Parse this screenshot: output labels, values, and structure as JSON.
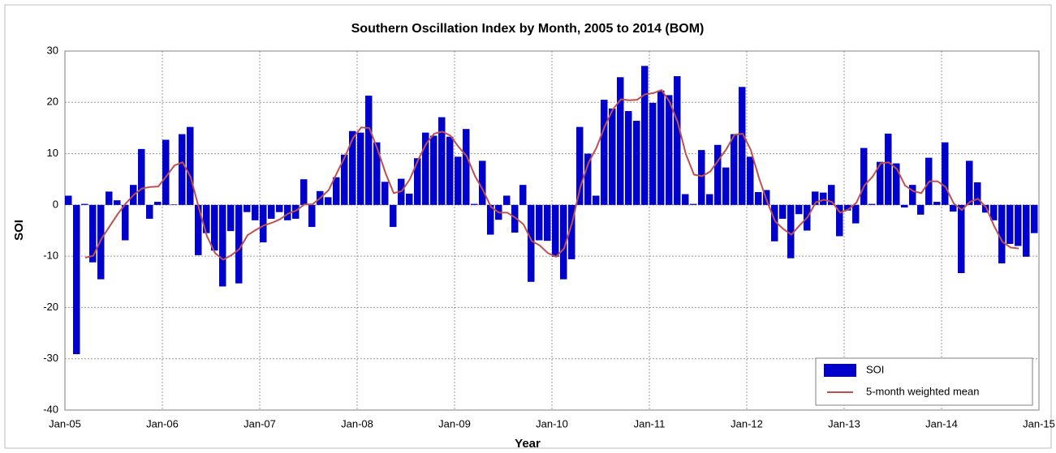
{
  "chart_data": {
    "type": "bar",
    "title": "Southern Oscillation Index by Month, 2005 to 2014 (BOM)",
    "x_label": "Year",
    "y_label": "SOI",
    "x": [
      "2005-01",
      "2005-02",
      "2005-03",
      "2005-04",
      "2005-05",
      "2005-06",
      "2005-07",
      "2005-08",
      "2005-09",
      "2005-10",
      "2005-11",
      "2005-12",
      "2006-01",
      "2006-02",
      "2006-03",
      "2006-04",
      "2006-05",
      "2006-06",
      "2006-07",
      "2006-08",
      "2006-09",
      "2006-10",
      "2006-11",
      "2006-12",
      "2007-01",
      "2007-02",
      "2007-03",
      "2007-04",
      "2007-05",
      "2007-06",
      "2007-07",
      "2007-08",
      "2007-09",
      "2007-10",
      "2007-11",
      "2007-12",
      "2008-01",
      "2008-02",
      "2008-03",
      "2008-04",
      "2008-05",
      "2008-06",
      "2008-07",
      "2008-08",
      "2008-09",
      "2008-10",
      "2008-11",
      "2008-12",
      "2009-01",
      "2009-02",
      "2009-03",
      "2009-04",
      "2009-05",
      "2009-06",
      "2009-07",
      "2009-08",
      "2009-09",
      "2009-10",
      "2009-11",
      "2009-12",
      "2010-01",
      "2010-02",
      "2010-03",
      "2010-04",
      "2010-05",
      "2010-06",
      "2010-07",
      "2010-08",
      "2010-09",
      "2010-10",
      "2010-11",
      "2010-12",
      "2011-01",
      "2011-02",
      "2011-03",
      "2011-04",
      "2011-05",
      "2011-06",
      "2011-07",
      "2011-08",
      "2011-09",
      "2011-10",
      "2011-11",
      "2011-12",
      "2012-01",
      "2012-02",
      "2012-03",
      "2012-04",
      "2012-05",
      "2012-06",
      "2012-07",
      "2012-08",
      "2012-09",
      "2012-10",
      "2012-11",
      "2012-12",
      "2013-01",
      "2013-02",
      "2013-03",
      "2013-04",
      "2013-05",
      "2013-06",
      "2013-07",
      "2013-08",
      "2013-09",
      "2013-10",
      "2013-11",
      "2013-12",
      "2014-01",
      "2014-02",
      "2014-03",
      "2014-04",
      "2014-05",
      "2014-06",
      "2014-07",
      "2014-08",
      "2014-09",
      "2014-10",
      "2014-11",
      "2014-12"
    ],
    "series": [
      {
        "name": "SOI",
        "color": "#0000cc",
        "type": "bar",
        "values": [
          1.8,
          -29.1,
          0.2,
          -11.2,
          -14.5,
          2.6,
          0.9,
          -6.9,
          3.9,
          10.9,
          -2.7,
          0.6,
          12.7,
          0.1,
          13.8,
          15.2,
          -9.8,
          -5.5,
          -8.9,
          -15.9,
          -5.1,
          -15.3,
          -1.4,
          -3.0,
          -7.3,
          -2.7,
          -1.4,
          -3.0,
          -2.7,
          5.0,
          -4.3,
          2.7,
          1.5,
          5.4,
          9.8,
          14.4,
          14.1,
          21.3,
          12.2,
          4.5,
          -4.3,
          5.1,
          2.2,
          9.1,
          14.1,
          13.5,
          17.1,
          13.3,
          9.4,
          14.8,
          0.2,
          8.6,
          -5.8,
          -2.9,
          1.8,
          -5.4,
          3.9,
          -15.0,
          -6.9,
          -7.0,
          -10.1,
          -14.5,
          -10.6,
          15.2,
          10.0,
          1.8,
          20.5,
          18.8,
          24.9,
          18.3,
          16.4,
          27.1,
          19.9,
          22.3,
          21.4,
          25.1,
          2.1,
          0.2,
          10.7,
          2.1,
          11.7,
          7.3,
          13.8,
          23.0,
          9.4,
          2.5,
          2.9,
          -7.1,
          -2.7,
          -10.4,
          -1.8,
          -5.0,
          2.6,
          2.4,
          3.9,
          -6.1,
          -1.1,
          -3.6,
          11.1,
          0.2,
          8.4,
          13.9,
          8.1,
          -0.5,
          3.9,
          -1.9,
          9.2,
          0.6,
          12.2,
          -1.3,
          -13.3,
          8.6,
          4.4,
          -1.5,
          -3.0,
          -11.4,
          -7.6,
          -8.0,
          -10.1,
          -5.5
        ]
      },
      {
        "name": "5-month weighted mean",
        "color": "#c0504d",
        "type": "line",
        "values": [
          null,
          null,
          -10.3,
          -9.9,
          -6.6,
          -4.2,
          -1.8,
          0.3,
          2.0,
          3.2,
          3.5,
          3.6,
          5.6,
          7.7,
          8.3,
          5.4,
          -0.6,
          -6.1,
          -9.4,
          -10.7,
          -9.8,
          -8.6,
          -5.9,
          -4.9,
          -4.0,
          -3.5,
          -2.8,
          -1.7,
          -1.1,
          0.1,
          0.1,
          1.4,
          2.9,
          6.2,
          9.4,
          13.1,
          15.1,
          15.0,
          10.9,
          6.2,
          2.3,
          2.7,
          5.0,
          8.7,
          11.9,
          13.9,
          14.3,
          13.5,
          11.3,
          9.5,
          5.7,
          2.9,
          -0.4,
          -1.5,
          -1.5,
          -2.5,
          -3.8,
          -7.0,
          -7.9,
          -9.4,
          -10.1,
          -8.5,
          -3.4,
          3.5,
          8.2,
          11.2,
          15.3,
          18.6,
          20.6,
          20.4,
          20.5,
          21.6,
          21.8,
          22.4,
          20.1,
          16.1,
          9.9,
          5.9,
          5.6,
          6.5,
          8.7,
          10.9,
          13.7,
          13.9,
          10.7,
          5.3,
          0.7,
          -3.2,
          -4.7,
          -5.8,
          -4.0,
          -2.4,
          0.5,
          1.0,
          0.6,
          -1.5,
          -0.9,
          0.4,
          3.8,
          5.5,
          8.1,
          8.3,
          7.0,
          3.8,
          2.7,
          2.3,
          4.6,
          4.6,
          3.5,
          0.3,
          -1.0,
          0.6,
          1.2,
          -0.5,
          -4.2,
          -7.2,
          -8.3,
          -8.5,
          null,
          null
        ]
      }
    ],
    "xlim": [
      "2005-01",
      "2015-01"
    ],
    "xticks": [
      {
        "value": "2005-01",
        "label": "Jan-05"
      },
      {
        "value": "2006-01",
        "label": "Jan-06"
      },
      {
        "value": "2007-01",
        "label": "Jan-07"
      },
      {
        "value": "2008-01",
        "label": "Jan-08"
      },
      {
        "value": "2009-01",
        "label": "Jan-09"
      },
      {
        "value": "2010-01",
        "label": "Jan-10"
      },
      {
        "value": "2011-01",
        "label": "Jan-11"
      },
      {
        "value": "2012-01",
        "label": "Jan-12"
      },
      {
        "value": "2013-01",
        "label": "Jan-13"
      },
      {
        "value": "2014-01",
        "label": "Jan-14"
      },
      {
        "value": "2015-01",
        "label": "Jan-15"
      }
    ],
    "ylim": [
      -40,
      30
    ],
    "yticks": [
      -40,
      -30,
      -20,
      -10,
      0,
      10,
      20,
      30
    ],
    "grid": true,
    "legend": "lower right"
  }
}
